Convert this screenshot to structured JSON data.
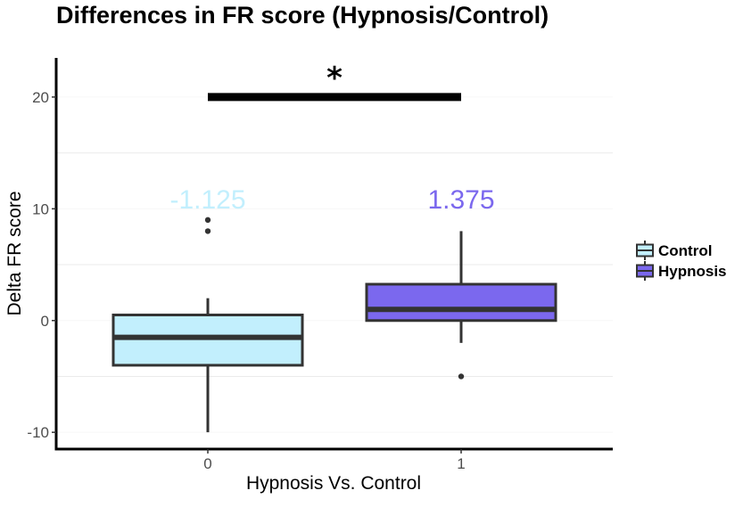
{
  "chart_data": {
    "type": "box",
    "title": "Differences in FR score (Hypnosis/Control)",
    "xlabel": "Hypnosis Vs. Control",
    "ylabel": "Delta FR score",
    "ylim": [
      -11.5,
      23.5
    ],
    "yticks": [
      -10,
      0,
      10,
      20
    ],
    "categories": [
      "0",
      "1"
    ],
    "grid": "horizontal major+minor, light",
    "legend_placement": "right",
    "series": [
      {
        "name": "Control",
        "category": "0",
        "color": "#c2effd",
        "whisker_low": -10,
        "q1": -4,
        "median": -1.5,
        "q3": 0.5,
        "whisker_high": 2,
        "outliers": [
          8,
          9
        ],
        "median_label": "-1.125",
        "label_color": "#c2effd"
      },
      {
        "name": "Hypnosis",
        "category": "1",
        "color": "#7b68ee",
        "whisker_low": -2,
        "q1": 0,
        "median": 1,
        "q3": 3.25,
        "whisker_high": 8,
        "outliers": [
          -5
        ],
        "median_label": "1.375",
        "label_color": "#7b68ee"
      }
    ],
    "annotations": [
      {
        "type": "significance-bar",
        "from": "0",
        "to": "1",
        "y": 20,
        "label": "*"
      }
    ]
  }
}
